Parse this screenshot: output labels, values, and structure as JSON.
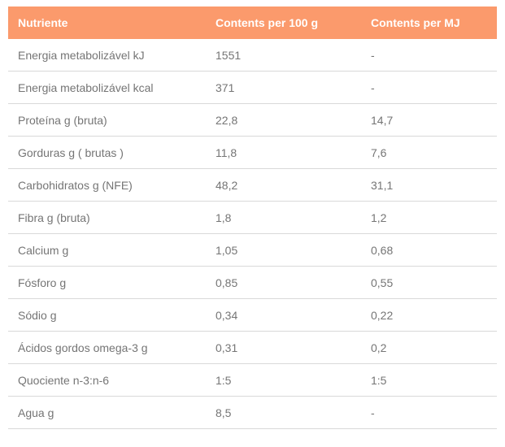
{
  "table": {
    "accent_color": "#fb9a6c",
    "header_text_color": "#ffffff",
    "body_text_color": "#757575",
    "separator_color": "#d9d9d9",
    "header": {
      "nutrient": "Nutriente",
      "per_100g": "Contents per 100 g",
      "per_mj": "Contents per MJ"
    },
    "rows": [
      {
        "nutrient": "Energia metabolizável kJ",
        "per_100g": "1551",
        "per_mj": "-"
      },
      {
        "nutrient": "Energia metabolizável kcal",
        "per_100g": "371",
        "per_mj": "-"
      },
      {
        "nutrient": "Proteína g (bruta)",
        "per_100g": "22,8",
        "per_mj": "14,7"
      },
      {
        "nutrient": "Gorduras g ( brutas )",
        "per_100g": "11,8",
        "per_mj": "7,6"
      },
      {
        "nutrient": "Carbohidratos g (NFE)",
        "per_100g": "48,2",
        "per_mj": "31,1"
      },
      {
        "nutrient": "Fibra g (bruta)",
        "per_100g": "1,8",
        "per_mj": "1,2"
      },
      {
        "nutrient": "Calcium g",
        "per_100g": "1,05",
        "per_mj": "0,68"
      },
      {
        "nutrient": "Fósforo g",
        "per_100g": "0,85",
        "per_mj": "0,55"
      },
      {
        "nutrient": "Sódio g",
        "per_100g": "0,34",
        "per_mj": "0,22"
      },
      {
        "nutrient": "Ácidos gordos omega-3 g",
        "per_100g": "0,31",
        "per_mj": "0,2"
      },
      {
        "nutrient": "Quociente n-3:n-6",
        "per_100g": "1:5",
        "per_mj": "1:5"
      },
      {
        "nutrient": "Agua g",
        "per_100g": "8,5",
        "per_mj": "-"
      }
    ]
  }
}
